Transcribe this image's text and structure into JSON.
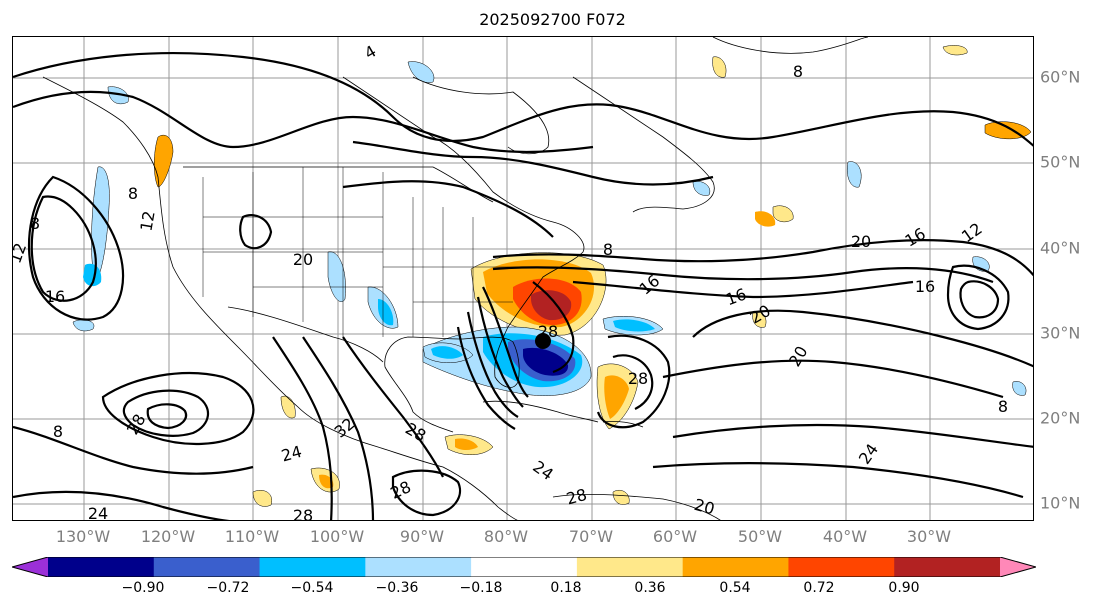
{
  "title": "2025092700 F072",
  "map": {
    "longitude_labels": [
      "130°W",
      "120°W",
      "110°W",
      "100°W",
      "90°W",
      "80°W",
      "70°W",
      "60°W",
      "50°W",
      "40°W",
      "30°W"
    ],
    "latitude_labels": [
      "60°N",
      "50°N",
      "40°N",
      "30°N",
      "20°N",
      "10°N"
    ],
    "contour_labels": [
      "4",
      "8",
      "8",
      "8",
      "8",
      "8",
      "8",
      "12",
      "12",
      "12",
      "16",
      "16",
      "16",
      "16",
      "16",
      "20",
      "20",
      "20",
      "20",
      "20",
      "24",
      "24",
      "24",
      "24",
      "28",
      "28",
      "28",
      "28",
      "28",
      "28",
      "32",
      "28"
    ],
    "storm_marker": "tropical-cyclone-center"
  },
  "colorbar": {
    "tick_labels": [
      "−0.90",
      "−0.72",
      "−0.54",
      "−0.36",
      "−0.18",
      "0.18",
      "0.36",
      "0.54",
      "0.72",
      "0.90"
    ],
    "colors": [
      "#9b30d8",
      "#00008b",
      "#3a5fcd",
      "#00bfff",
      "#ace0ff",
      "#ffffff",
      "#ffe88a",
      "#ffa500",
      "#ff4500",
      "#b22222",
      "#ff88b8"
    ]
  }
}
